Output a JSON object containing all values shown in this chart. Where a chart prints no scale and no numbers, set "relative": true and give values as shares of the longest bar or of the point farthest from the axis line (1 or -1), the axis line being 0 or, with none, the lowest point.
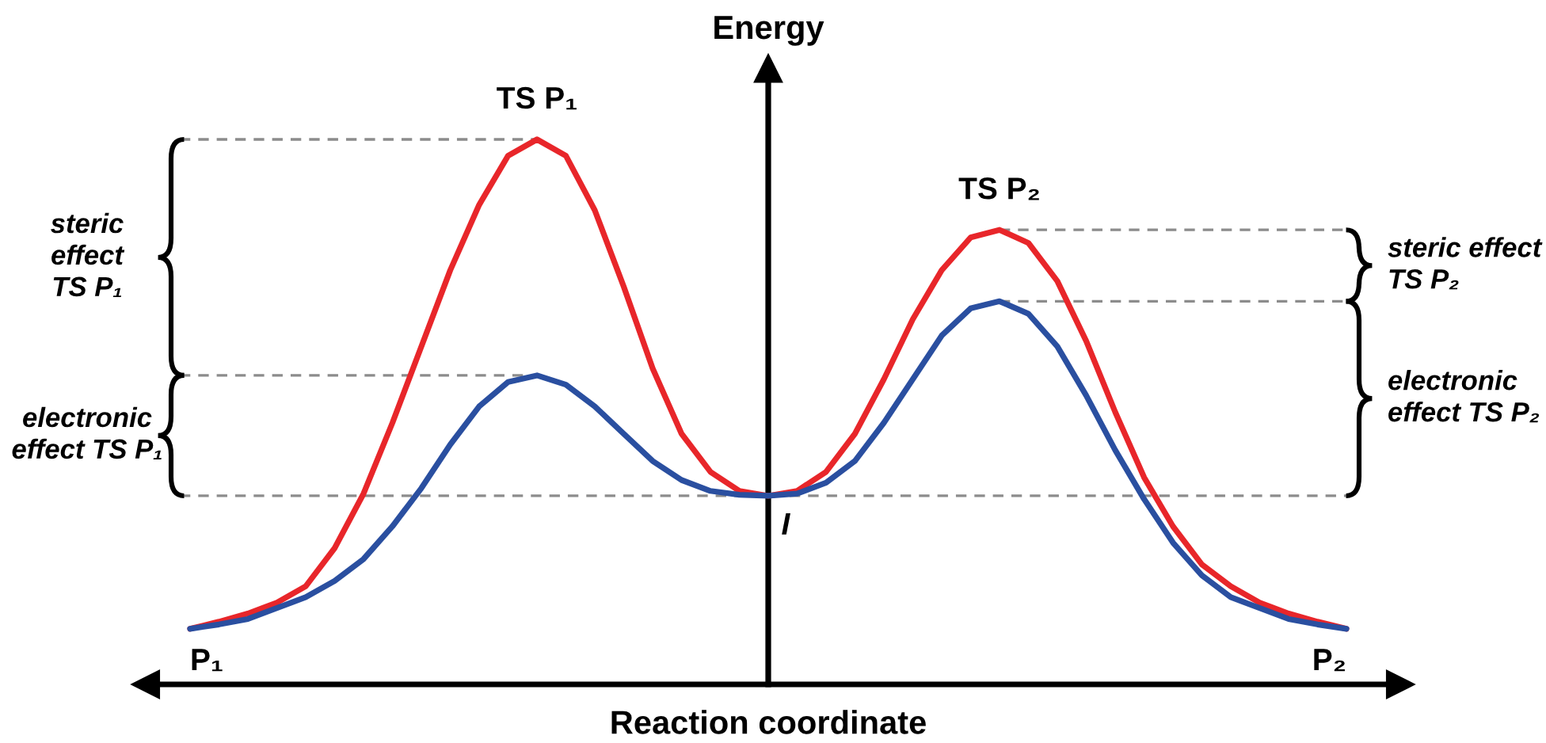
{
  "chart_data": {
    "type": "line",
    "xlabel": "Reaction coordinate",
    "ylabel": "Energy",
    "relative": true,
    "categories": [
      null,
      null,
      null,
      null,
      null,
      null,
      null,
      null,
      null,
      null,
      null,
      null,
      null,
      null,
      null,
      null,
      null,
      null,
      null,
      null,
      null,
      null,
      null,
      null,
      null,
      null,
      null,
      null,
      null,
      null,
      null,
      null,
      null,
      null,
      null,
      null,
      null,
      null,
      null,
      null,
      null
    ],
    "series": [
      {
        "color": "#e8262a",
        "values": [
          0.102,
          0.115,
          0.13,
          0.15,
          0.18,
          0.25,
          0.35,
          0.48,
          0.62,
          0.76,
          0.88,
          0.97,
          1.0,
          0.97,
          0.87,
          0.73,
          0.58,
          0.46,
          0.39,
          0.355,
          0.346,
          0.355,
          0.39,
          0.46,
          0.56,
          0.67,
          0.76,
          0.82,
          0.834,
          0.81,
          0.74,
          0.63,
          0.5,
          0.38,
          0.29,
          0.22,
          0.18,
          0.15,
          0.13,
          0.115,
          0.102
        ]
      },
      {
        "color": "#2a4fa0",
        "values": [
          0.102,
          0.11,
          0.12,
          0.14,
          0.16,
          0.19,
          0.23,
          0.29,
          0.36,
          0.44,
          0.51,
          0.555,
          0.567,
          0.55,
          0.51,
          0.46,
          0.41,
          0.375,
          0.355,
          0.348,
          0.346,
          0.35,
          0.37,
          0.41,
          0.48,
          0.56,
          0.64,
          0.69,
          0.703,
          0.68,
          0.62,
          0.53,
          0.43,
          0.34,
          0.26,
          0.2,
          0.16,
          0.14,
          0.12,
          0.11,
          0.102
        ]
      }
    ],
    "annotations": [
      "TS P₁",
      "TS P₂",
      "I",
      "P₁",
      "P₂",
      "steric\neffect\nTS P₁",
      "electronic\neffect TS P₁",
      "steric effect\nTS P₂",
      "electronic\neffect TS P₂"
    ],
    "ref_lines": [
      {
        "axis": "y",
        "value": 1.0,
        "color": "#8c8c8c",
        "line_style": "dashed"
      },
      {
        "axis": "y",
        "value": 0.567,
        "color": "#8c8c8c",
        "line_style": "dashed"
      },
      {
        "axis": "y",
        "value": 0.346,
        "color": "#8c8c8c",
        "line_style": "dashed"
      },
      {
        "axis": "y",
        "value": 0.834,
        "color": "#8c8c8c",
        "line_style": "dashed"
      },
      {
        "axis": "y",
        "value": 0.703,
        "color": "#8c8c8c",
        "line_style": "dashed"
      }
    ]
  }
}
